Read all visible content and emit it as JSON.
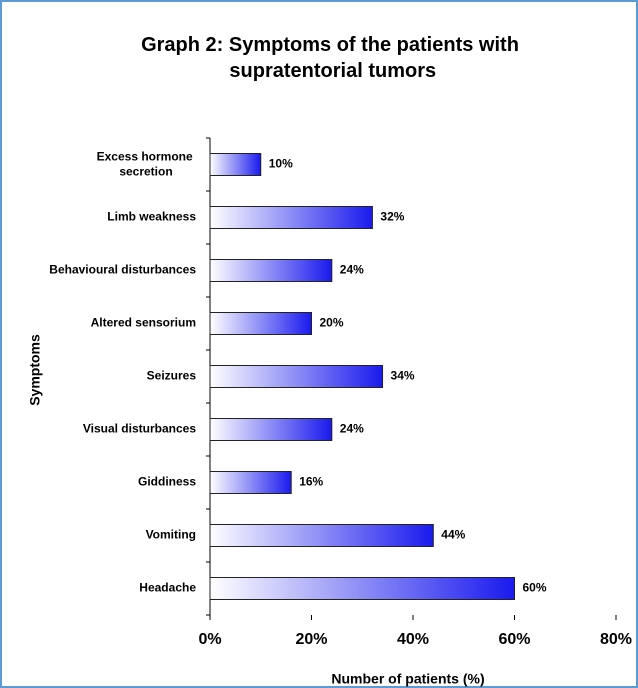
{
  "chart_data": {
    "type": "bar",
    "orientation": "horizontal",
    "title": "Graph 2: Symptoms of the patients with supratentorial tumors",
    "xlabel": "Number of patients (%)",
    "ylabel": "Symptoms",
    "categories": [
      "Excess hormone secretion",
      "Limb weakness",
      "Behavioural disturbances",
      "Altered sensorium",
      "Seizures",
      "Visual disturbances",
      "Giddiness",
      "Vomiting",
      "Headache"
    ],
    "values": [
      10,
      32,
      24,
      20,
      34,
      24,
      16,
      44,
      60
    ],
    "value_labels": [
      "10%",
      "32%",
      "24%",
      "20%",
      "34%",
      "24%",
      "16%",
      "44%",
      "60%"
    ],
    "color": "#1a1aee",
    "xlim": [
      0,
      80
    ],
    "xticks": [
      {
        "value": 0,
        "label": "0%"
      },
      {
        "value": 20,
        "label": "20%"
      },
      {
        "value": 40,
        "label": "40%"
      },
      {
        "value": 60,
        "label": "60%"
      },
      {
        "value": 80,
        "label": "80%"
      }
    ]
  }
}
